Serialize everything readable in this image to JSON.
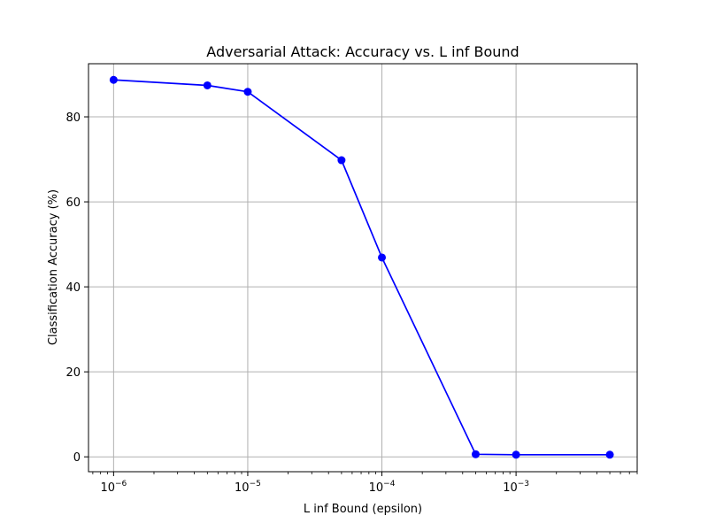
{
  "chart_data": {
    "type": "line",
    "title": "Adversarial Attack: Accuracy vs. L inf Bound",
    "xlabel": "L inf Bound (epsilon)",
    "ylabel": "Classification Accuracy (%)",
    "x_scale": "log",
    "xlim": [
      6.5e-07,
      0.008
    ],
    "ylim": [
      -3.5,
      92.5
    ],
    "grid": true,
    "x_ticks": [
      {
        "value": 1e-06,
        "base": "10",
        "exp": "−6"
      },
      {
        "value": 1e-05,
        "base": "10",
        "exp": "−5"
      },
      {
        "value": 0.0001,
        "base": "10",
        "exp": "−4"
      },
      {
        "value": 0.001,
        "base": "10",
        "exp": "−3"
      }
    ],
    "y_ticks": [
      {
        "value": 0,
        "label": "0"
      },
      {
        "value": 20,
        "label": "20"
      },
      {
        "value": 40,
        "label": "40"
      },
      {
        "value": 60,
        "label": "60"
      },
      {
        "value": 80,
        "label": "80"
      }
    ],
    "series": [
      {
        "color": "#0000ff",
        "marker": "circle",
        "x": [
          1e-06,
          5e-06,
          1e-05,
          5e-05,
          0.0001,
          0.0005,
          0.001,
          0.005
        ],
        "y": [
          88.7,
          87.4,
          85.9,
          69.8,
          46.9,
          0.6,
          0.5,
          0.5
        ]
      }
    ]
  }
}
